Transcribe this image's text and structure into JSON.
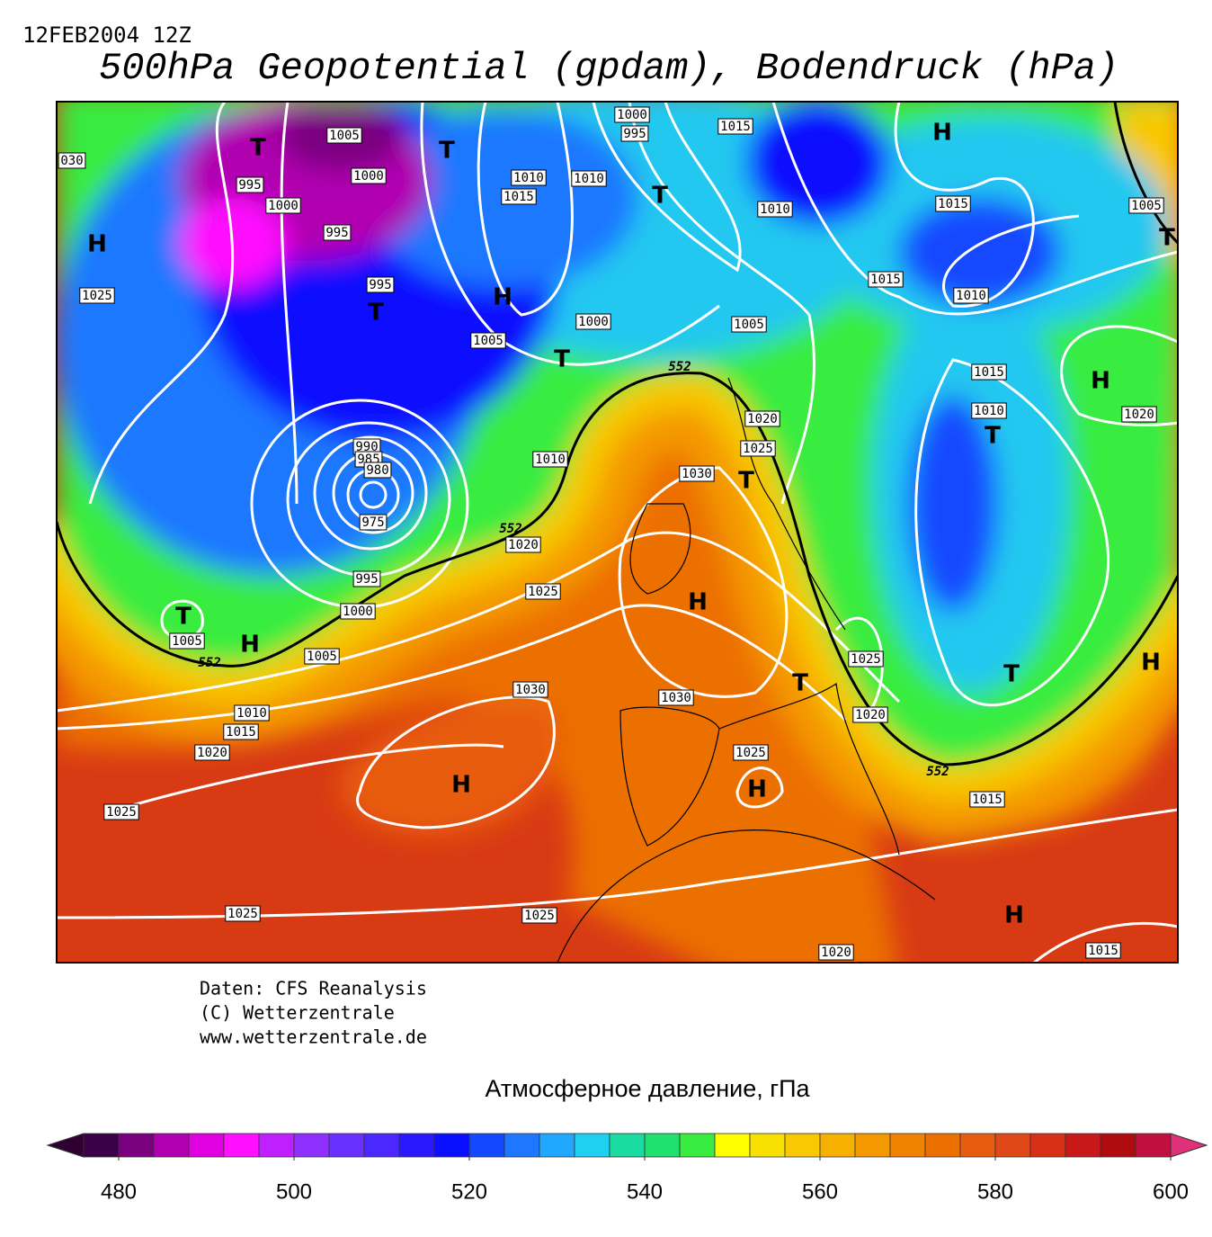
{
  "header": {
    "date": "12FEB2004 12Z",
    "title": "500hPa Geopotential (gpdam), Bodendruck (hPa)"
  },
  "map": {
    "isobar_labels": [
      "1005",
      "1000",
      "995",
      "1000",
      "995",
      "030",
      "1025",
      "995",
      "1005",
      "1010",
      "1015",
      "1010",
      "1000",
      "995",
      "1015",
      "1010",
      "1015",
      "1005",
      "1015",
      "1010",
      "1000",
      "1005",
      "1015",
      "1010",
      "1020",
      "1020",
      "1025",
      "1030",
      "1010",
      "990",
      "985",
      "980",
      "975",
      "1020",
      "1025",
      "995",
      "1000",
      "1005",
      "1005",
      "1025",
      "1030",
      "1030",
      "1010",
      "1015",
      "1020",
      "1025",
      "1020",
      "1015",
      "1025",
      "1025",
      "1025",
      "1020",
      "1015"
    ],
    "contour_labels": [
      "552",
      "552",
      "552",
      "552"
    ],
    "centers": [
      "T",
      "T",
      "H",
      "T",
      "H",
      "T",
      "H",
      "T",
      "T",
      "H",
      "T",
      "T",
      "T",
      "H",
      "H",
      "T",
      "H",
      "T",
      "H",
      "H",
      "H"
    ]
  },
  "credits": [
    "Daten: CFS Reanalysis",
    "(C) Wetterzentrale",
    "www.wetterzentrale.de"
  ],
  "colorbar": {
    "title": "Атмосферное давление, гПа",
    "range": [
      476,
      600
    ],
    "ticks": [
      480,
      500,
      520,
      540,
      560,
      580,
      600
    ],
    "colors": [
      "#3a0048",
      "#7a0080",
      "#b000b0",
      "#e000e0",
      "#ff10ff",
      "#c020ff",
      "#9030ff",
      "#6a30ff",
      "#4a28ff",
      "#2a18ff",
      "#0a10ff",
      "#1448ff",
      "#1e78ff",
      "#20a8ff",
      "#20d0f0",
      "#18dca0",
      "#20e070",
      "#38ec40",
      "#ffff00",
      "#f8e000",
      "#f8c800",
      "#f8b000",
      "#f49800",
      "#f08400",
      "#ec7000",
      "#e85c10",
      "#e04818",
      "#d83018",
      "#c81818",
      "#b00c10",
      "#c01040"
    ],
    "under_color": "#300030",
    "over_color": "#e0307a"
  }
}
